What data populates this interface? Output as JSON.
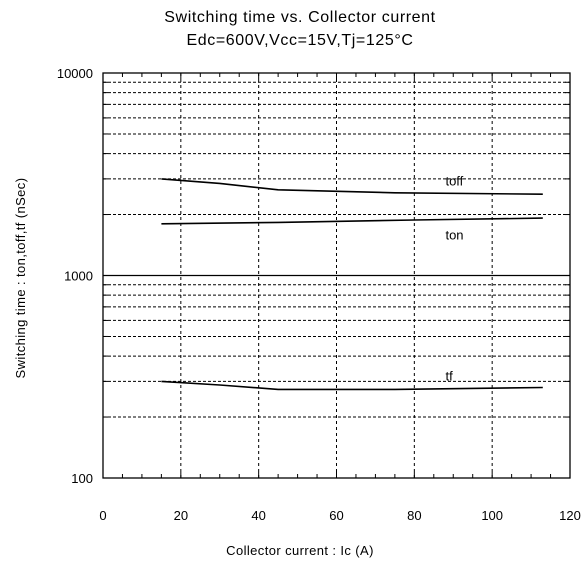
{
  "chart_data": {
    "type": "line",
    "title": "Switching time vs. Collector current",
    "subtitle": "Edc=600V,Vcc=15V,Tj=125°C",
    "xlabel": "Collector current : Ic (A)",
    "ylabel": "Switching time : ton,toff,tf (nSec)",
    "x_scale": "linear",
    "y_scale": "log",
    "xlim": [
      0,
      120
    ],
    "ylim": [
      100,
      10000
    ],
    "x_ticks": [
      0,
      20,
      40,
      60,
      80,
      100,
      120
    ],
    "x_tick_labels": [
      "0",
      "20",
      "40",
      "60",
      "80",
      "100",
      "120"
    ],
    "y_ticks": [
      100,
      1000,
      10000
    ],
    "y_tick_labels": [
      "100",
      "1000",
      "10000"
    ],
    "grid": true,
    "series": [
      {
        "name": "toff",
        "x": [
          15,
          30,
          45,
          75,
          113
        ],
        "y": [
          3000,
          2850,
          2650,
          2560,
          2520
        ]
      },
      {
        "name": "ton",
        "x": [
          15,
          45,
          80,
          113
        ],
        "y": [
          1800,
          1830,
          1880,
          1920
        ]
      },
      {
        "name": "tf",
        "x": [
          15,
          30,
          45,
          75,
          113
        ],
        "y": [
          300,
          288,
          274,
          274,
          280
        ]
      }
    ]
  }
}
